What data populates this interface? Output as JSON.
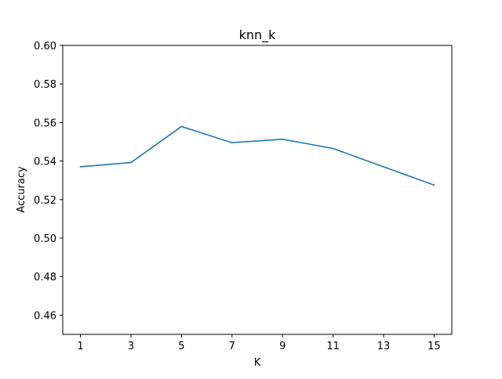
{
  "chart_data": {
    "type": "line",
    "title": "knn_k",
    "xlabel": "K",
    "ylabel": "Accuracy",
    "x": [
      1,
      3,
      5,
      7,
      9,
      11,
      13,
      15
    ],
    "x_tick_labels": [
      "1",
      "3",
      "5",
      "7",
      "9",
      "11",
      "13",
      "15"
    ],
    "y_tick_labels": [
      "0.46",
      "0.48",
      "0.50",
      "0.52",
      "0.54",
      "0.56",
      "0.58",
      "0.60"
    ],
    "y_ticks": [
      0.46,
      0.48,
      0.5,
      0.52,
      0.54,
      0.56,
      0.58,
      0.6
    ],
    "xlim": [
      0.3,
      15.7
    ],
    "ylim": [
      0.45,
      0.6
    ],
    "grid": false,
    "series": [
      {
        "color": "#1f77b4",
        "values": [
          0.537,
          0.5392,
          0.5579,
          0.5495,
          0.5513,
          0.5465,
          0.537,
          0.5275
        ]
      }
    ]
  }
}
